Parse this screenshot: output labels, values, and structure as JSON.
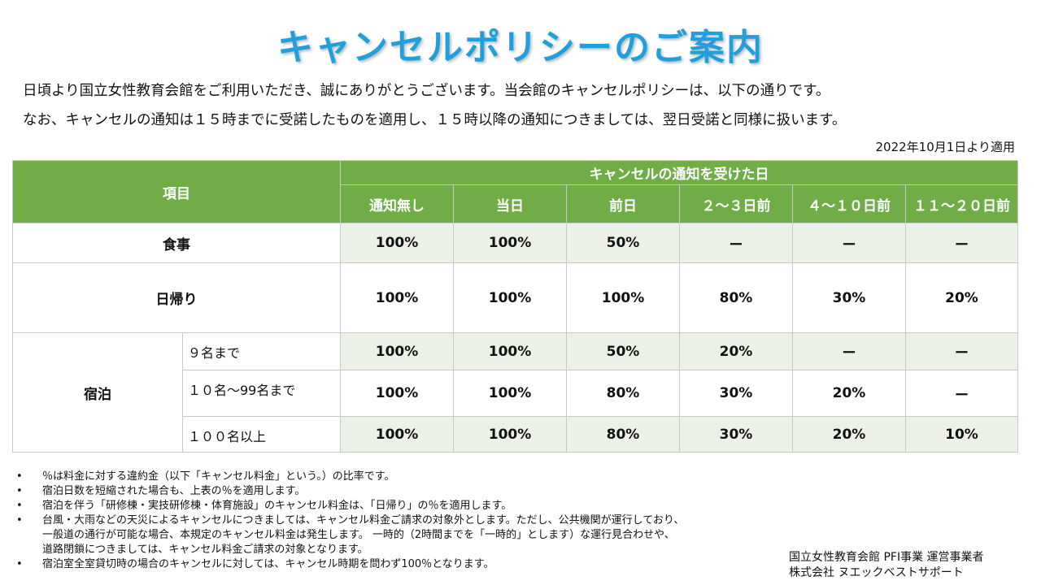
{
  "title": "キャンセルポリシーのご案内",
  "intro": [
    "日頃より国立女性教育会館をご利用いただき、誠にありがとうございます。当会館のキャンセルポリシーは、以下の通りです。",
    "なお、キャンセルの通知は１５時までに受諾したものを適用し、１５時以降の通知につきましては、翌日受諾と同様に扱います。"
  ],
  "effective_date": "2022年10月1日より適用",
  "table": {
    "item_header": "項目",
    "group_header": "キャンセルの通知を受けた日",
    "columns": [
      "通知無し",
      "当日",
      "前日",
      "２～３日前",
      "４～１０日前",
      "１１～２０日前"
    ],
    "rows": {
      "meal": {
        "label": "食事",
        "values": [
          "100%",
          "100%",
          "50%",
          "ー",
          "ー",
          "ー"
        ]
      },
      "daytrip": {
        "label": "日帰り",
        "values": [
          "100%",
          "100%",
          "100%",
          "80%",
          "30%",
          "20%"
        ]
      },
      "stay": {
        "label": "宿泊",
        "sub": [
          {
            "label": "９名まで",
            "values": [
              "100%",
              "100%",
              "50%",
              "20%",
              "ー",
              "ー"
            ]
          },
          {
            "label": "１０名～99名まで",
            "values": [
              "100%",
              "100%",
              "80%",
              "30%",
              "20%",
              "ー"
            ]
          },
          {
            "label": "１００名以上",
            "values": [
              "100%",
              "100%",
              "80%",
              "30%",
              "20%",
              "10%"
            ]
          }
        ]
      }
    }
  },
  "notes": [
    "％は料金に対する違約金（以下「キャンセル料金」という。）の比率です。",
    "宿泊日数を短縮された場合も、上表の％を適用します。",
    "宿泊を伴う「研修棟・実技研修棟・体育施設」のキャンセル料金は、「日帰り」の％を適用します。",
    "台風・大雨などの天災によるキャンセルにつきましては、キャンセル料金ご請求の対象外とします。ただし、公共機関が運行しており、",
    "一般道の通行が可能な場合、本規定のキャンセル料金は発生します。 一時的（2時間までを「一時的」とします）な運行見合わせや、",
    "道路閉鎖につきましては、キャンセル料金ご請求の対象となります。",
    "宿泊室全室貸切時の場合のキャンセルに対しては、キャンセル時期を問わず100％となります。"
  ],
  "footer": {
    "line1": "国立女性教育会館 PFI事業 運営事業者",
    "line2": "株式会社 ヌエックベストサポート"
  },
  "colors": {
    "title": "#1fa0dc",
    "header_bg": "#70ad47",
    "zebra_bg": "#ebf1e6"
  }
}
